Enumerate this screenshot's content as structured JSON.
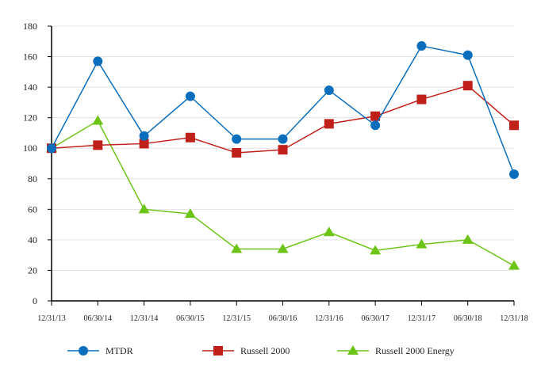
{
  "chart_data": {
    "type": "line",
    "title": "",
    "xlabel": "",
    "ylabel": "",
    "categories": [
      "12/31/13",
      "06/30/14",
      "12/31/14",
      "06/30/15",
      "12/31/15",
      "06/30/16",
      "12/31/16",
      "06/30/17",
      "12/31/17",
      "06/30/18",
      "12/31/18"
    ],
    "ylim": [
      0,
      180
    ],
    "yticks": [
      0,
      20,
      40,
      60,
      80,
      100,
      120,
      140,
      160,
      180
    ],
    "grid": true,
    "legend_placement": "bottom",
    "series": [
      {
        "name": "MTDR",
        "color": "#0a6ebd",
        "marker": "circle",
        "values": [
          100,
          157,
          108,
          134,
          106,
          106,
          138,
          115,
          167,
          161,
          83
        ]
      },
      {
        "name": "Russell 2000",
        "color": "#c0201a",
        "marker": "square",
        "values": [
          100,
          102,
          103,
          107,
          97,
          99,
          116,
          121,
          132,
          141,
          115
        ]
      },
      {
        "name": "Russell 2000 Energy",
        "color": "#6cc417",
        "marker": "triangle",
        "values": [
          100,
          118,
          60,
          57,
          34,
          34,
          45,
          33,
          37,
          40,
          23
        ]
      }
    ]
  }
}
